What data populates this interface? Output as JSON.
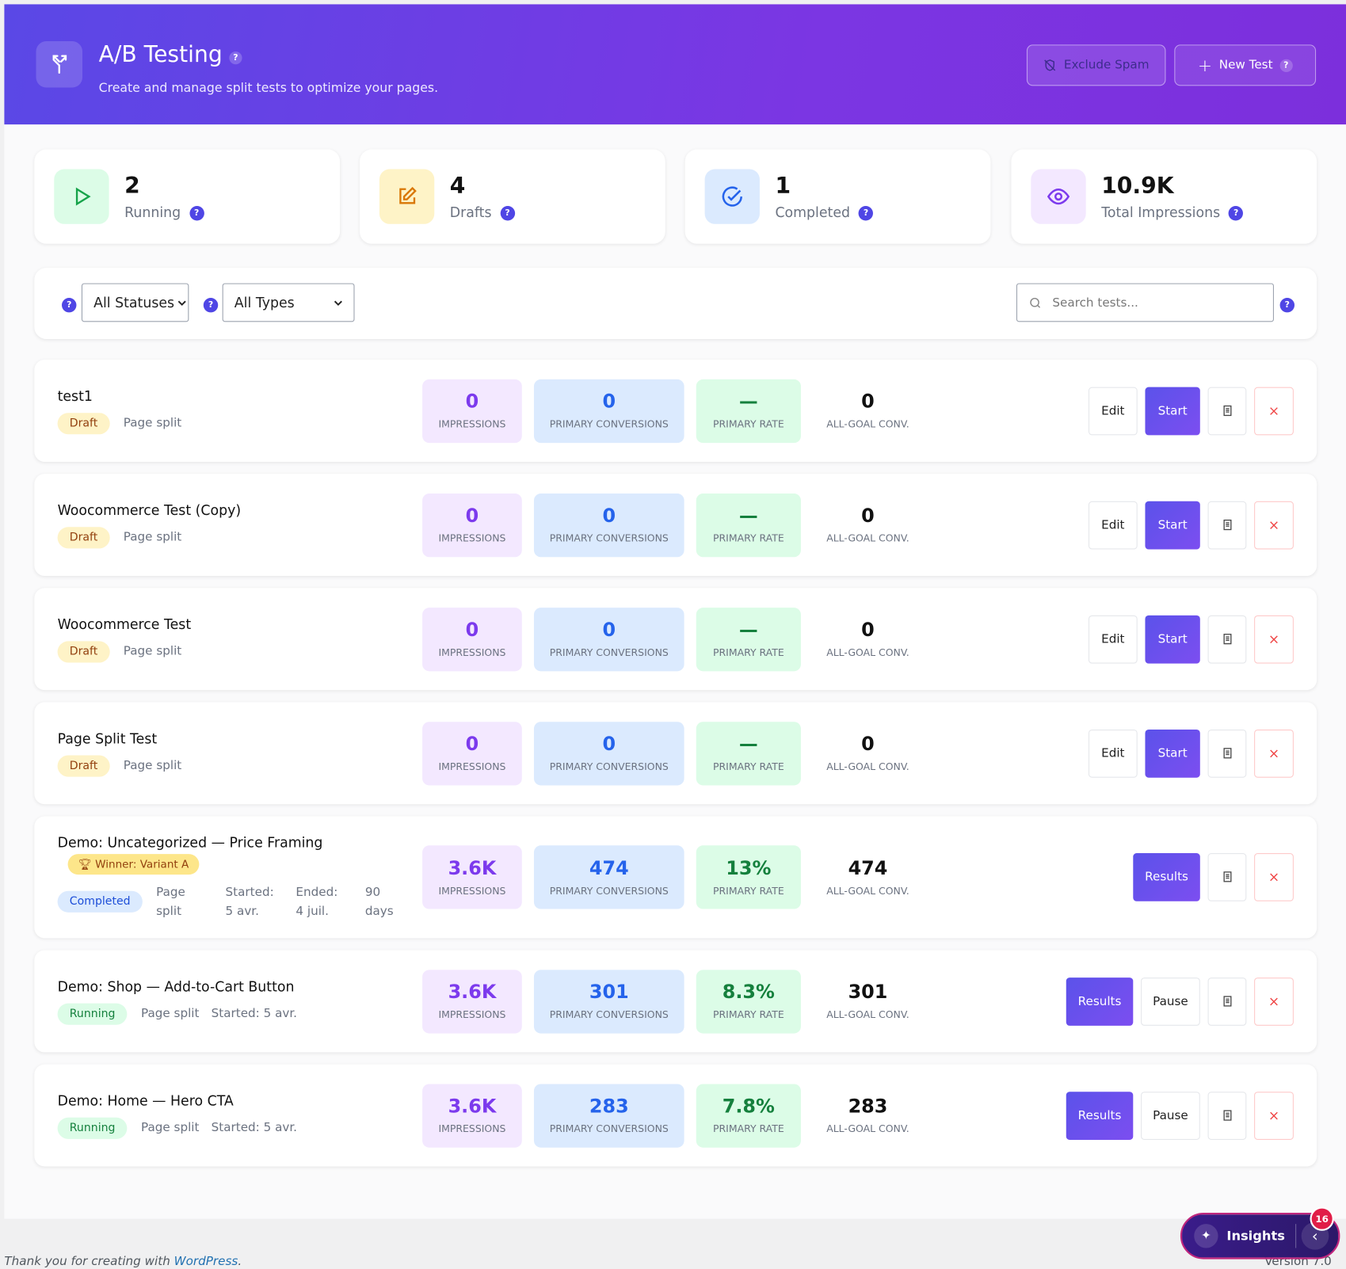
{
  "header": {
    "title": "A/B Testing",
    "subtitle": "Create and manage split tests to optimize your pages.",
    "help": "?",
    "buttons": [
      "Exclude Spam",
      "New Test"
    ]
  },
  "stats": [
    {
      "value": "2",
      "label": "Running"
    },
    {
      "value": "4",
      "label": "Drafts"
    },
    {
      "value": "1",
      "label": "Completed"
    },
    {
      "value": "10.9K",
      "label": "Total Impressions"
    }
  ],
  "filters": {
    "status": "All Statuses",
    "type": "All Types",
    "search_placeholder": "Search tests..."
  },
  "metric_labels": [
    "IMPRESSIONS",
    "PRIMARY CONVERSIONS",
    "PRIMARY RATE",
    "ALL-GOAL CONV."
  ],
  "tests": [
    {
      "name": "test1",
      "status": "Draft",
      "meta": [
        "Page split"
      ],
      "metrics": [
        "0",
        "0",
        "—",
        "0"
      ],
      "actions": [
        "Edit",
        "Start"
      ]
    },
    {
      "name": "Woocommerce Test (Copy)",
      "status": "Draft",
      "meta": [
        "Page split"
      ],
      "metrics": [
        "0",
        "0",
        "—",
        "0"
      ],
      "actions": [
        "Edit",
        "Start"
      ]
    },
    {
      "name": "Woocommerce Test",
      "status": "Draft",
      "meta": [
        "Page split"
      ],
      "metrics": [
        "0",
        "0",
        "—",
        "0"
      ],
      "actions": [
        "Edit",
        "Start"
      ]
    },
    {
      "name": "Page Split Test",
      "status": "Draft",
      "meta": [
        "Page split"
      ],
      "metrics": [
        "0",
        "0",
        "—",
        "0"
      ],
      "actions": [
        "Edit",
        "Start"
      ]
    },
    {
      "name": "Demo: Uncategorized — Price Framing",
      "winner": "Winner: Variant A",
      "status": "Completed",
      "meta": [
        "Page split",
        "Started: 5 avr.",
        "Ended: 4 juil.",
        "90 days"
      ],
      "metrics": [
        "3.6K",
        "474",
        "13%",
        "474"
      ],
      "actions": [
        "Results"
      ]
    },
    {
      "name": "Demo: Shop — Add-to-Cart Button",
      "status": "Running",
      "meta": [
        "Page split",
        "Started: 5 avr."
      ],
      "metrics": [
        "3.6K",
        "301",
        "8.3%",
        "301"
      ],
      "actions": [
        "Results",
        "Pause"
      ]
    },
    {
      "name": "Demo: Home — Hero CTA",
      "status": "Running",
      "meta": [
        "Page split",
        "Started: 5 avr."
      ],
      "metrics": [
        "3.6K",
        "283",
        "7.8%",
        "283"
      ],
      "actions": [
        "Results",
        "Pause"
      ]
    }
  ],
  "footer": {
    "text": "Thank you for creating with ",
    "link": "WordPress",
    "end": ".",
    "version": "Version 7.0"
  },
  "insights": {
    "label": "Insights",
    "badge": "16"
  }
}
